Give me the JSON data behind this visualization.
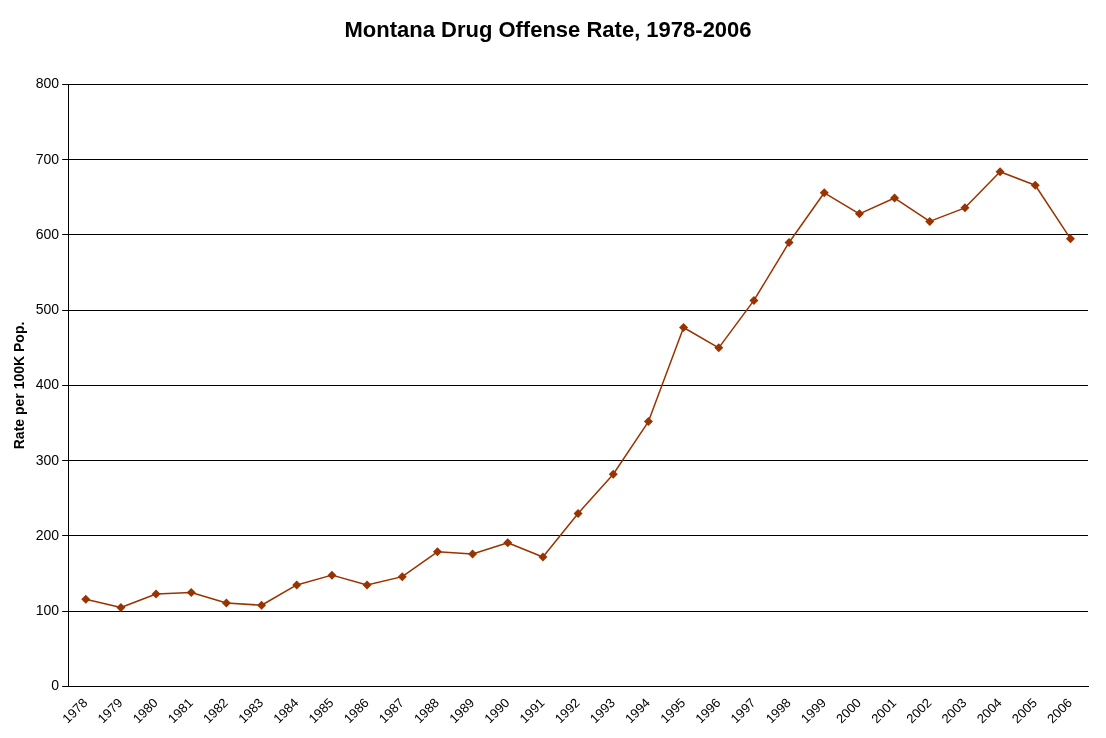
{
  "chart_data": {
    "type": "line",
    "title": "Montana Drug Offense Rate, 1978-2006",
    "ylabel": "Rate per 100K Pop.",
    "categories": [
      "1978",
      "1979",
      "1980",
      "1981",
      "1982",
      "1983",
      "1984",
      "1985",
      "1986",
      "1987",
      "1988",
      "1989",
      "1990",
      "1991",
      "1992",
      "1993",
      "1994",
      "1995",
      "1996",
      "1997",
      "1998",
      "1999",
      "2000",
      "2001",
      "2002",
      "2003",
      "2004",
      "2005",
      "2006"
    ],
    "series": [
      {
        "color": "#993300",
        "values": [
          116,
          105,
          123,
          125,
          111,
          108,
          135,
          148,
          135,
          146,
          179,
          176,
          191,
          172,
          230,
          282,
          352,
          477,
          450,
          513,
          590,
          656,
          628,
          649,
          618,
          636,
          684,
          666,
          595
        ]
      }
    ],
    "ylim": [
      0,
      800
    ],
    "yticks": [
      0,
      100,
      200,
      300,
      400,
      500,
      600,
      700,
      800
    ],
    "grid": "y",
    "legend": false,
    "marker": "diamond",
    "line_style": "solid"
  }
}
